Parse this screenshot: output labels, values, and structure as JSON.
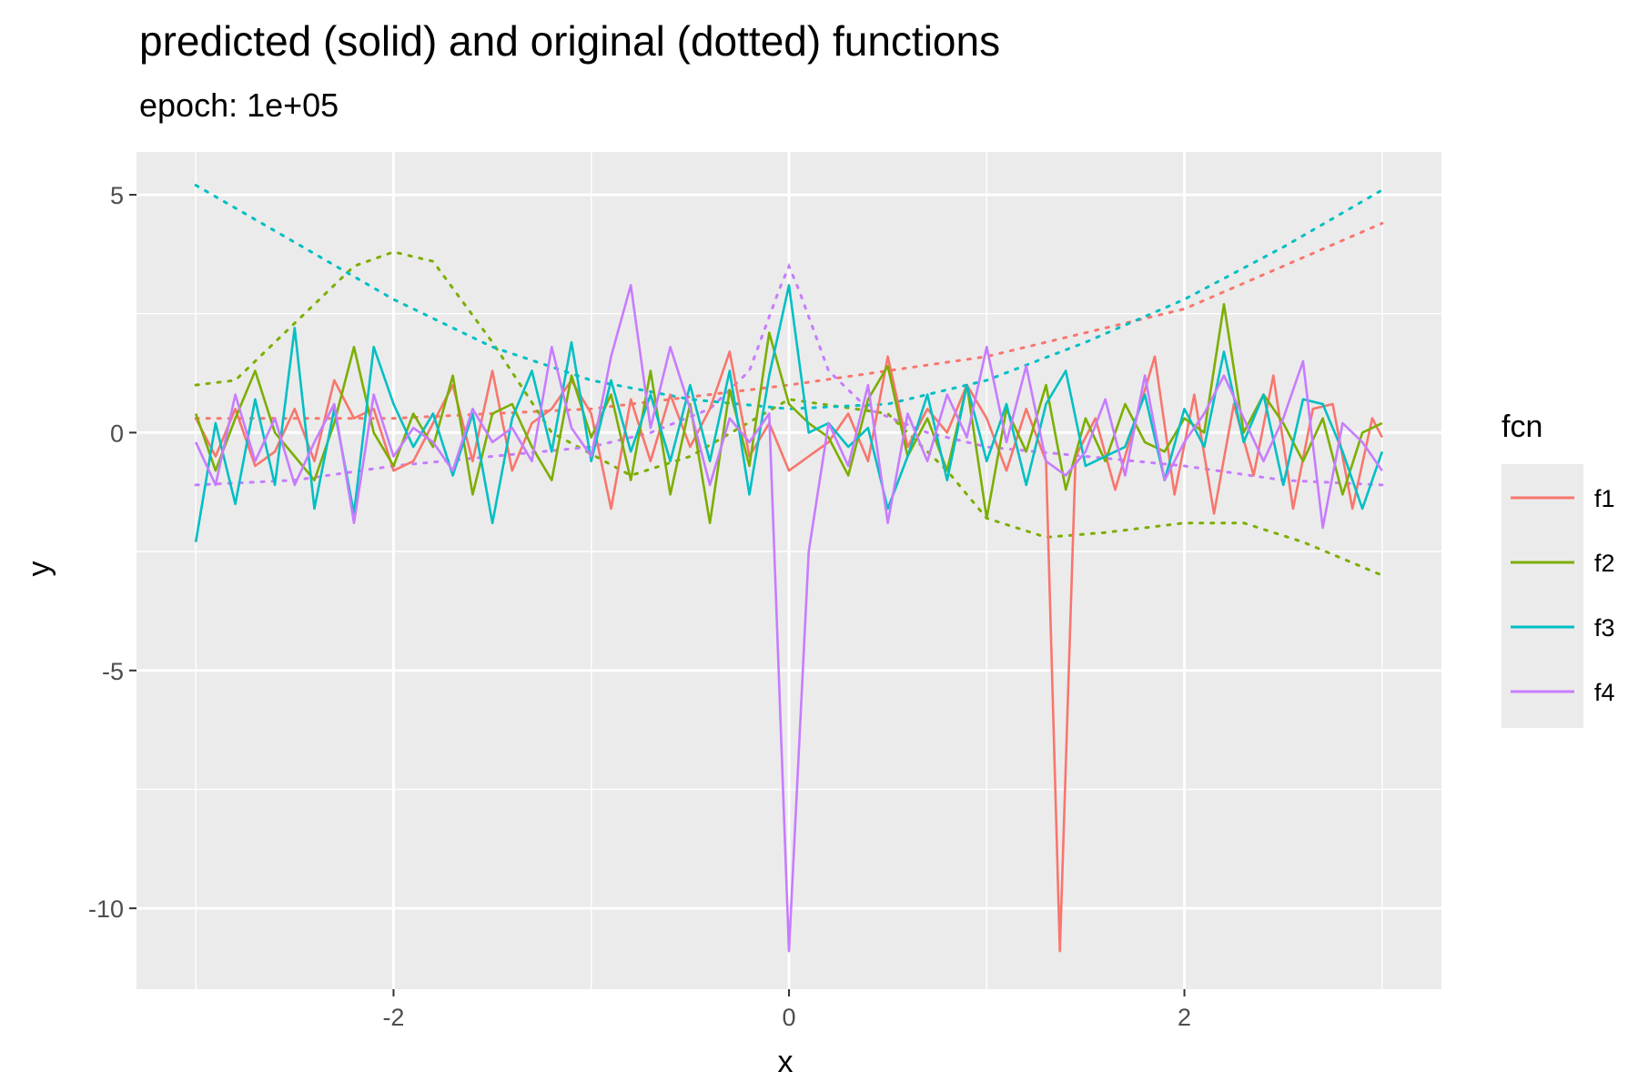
{
  "chart_data": {
    "type": "line",
    "title": "predicted (solid) and original (dotted) functions",
    "subtitle": "epoch: 1e+05",
    "xlabel": "x",
    "ylabel": "y",
    "xlim": [
      -3.3,
      3.3
    ],
    "ylim": [
      -11.7,
      5.9
    ],
    "x_ticks": [
      -2,
      0,
      2
    ],
    "x_tick_labels": [
      "-2",
      "0",
      "2"
    ],
    "y_ticks": [
      5,
      0,
      -5,
      -10
    ],
    "y_tick_labels": [
      "5",
      "0",
      "-5",
      "-10"
    ],
    "grid": true,
    "legend": {
      "title": "fcn",
      "position": "right"
    },
    "series": [
      {
        "name": "f1",
        "color": "#F8766D",
        "original_x": [
          -3,
          -2,
          -1,
          0,
          1,
          2,
          3
        ],
        "original_y": [
          0.3,
          0.3,
          0.5,
          1.0,
          1.6,
          2.6,
          4.4
        ],
        "predicted_x": [
          -3,
          -2.9,
          -2.8,
          -2.7,
          -2.6,
          -2.5,
          -2.4,
          -2.3,
          -2.2,
          -2.1,
          -2.0,
          -1.9,
          -1.8,
          -1.7,
          -1.6,
          -1.5,
          -1.4,
          -1.3,
          -1.2,
          -1.1,
          -1.0,
          -0.9,
          -0.8,
          -0.7,
          -0.6,
          -0.5,
          -0.4,
          -0.3,
          -0.2,
          -0.1,
          0,
          0.1,
          0.2,
          0.3,
          0.4,
          0.5,
          0.6,
          0.7,
          0.8,
          0.9,
          1.0,
          1.1,
          1.2,
          1.3,
          1.37,
          1.45,
          1.55,
          1.65,
          1.75,
          1.85,
          1.95,
          2.05,
          2.15,
          2.25,
          2.35,
          2.45,
          2.55,
          2.65,
          2.75,
          2.85,
          2.95,
          3.0
        ],
        "predicted_y": [
          0.3,
          -0.5,
          0.5,
          -0.7,
          -0.4,
          0.5,
          -0.6,
          1.1,
          0.3,
          0.5,
          -0.8,
          -0.6,
          0.2,
          1.0,
          -0.6,
          1.3,
          -0.8,
          0.2,
          0.5,
          1.1,
          0.4,
          -1.6,
          0.7,
          -0.6,
          0.8,
          -0.3,
          0.5,
          1.7,
          -0.5,
          0.2,
          -0.8,
          -0.5,
          -0.2,
          0.4,
          -0.6,
          1.6,
          -0.3,
          0.5,
          0.0,
          1.0,
          0.3,
          -0.8,
          0.5,
          -0.6,
          -10.9,
          -0.5,
          0.3,
          -1.2,
          0.2,
          1.6,
          -1.3,
          0.8,
          -1.7,
          0.6,
          -0.9,
          1.2,
          -1.6,
          0.5,
          0.6,
          -1.6,
          0.3,
          -0.1
        ]
      },
      {
        "name": "f2",
        "color": "#7CAE00",
        "original_x": [
          -3,
          -2.8,
          -2.5,
          -2.2,
          -2.0,
          -1.8,
          -1.5,
          -1.2,
          -0.8,
          -0.5,
          0,
          0.5,
          0.8,
          1.0,
          1.3,
          1.6,
          2.0,
          2.3,
          2.6,
          3.0
        ],
        "original_y": [
          1.0,
          1.1,
          2.3,
          3.5,
          3.8,
          3.6,
          1.9,
          0.0,
          -0.9,
          -0.5,
          0.7,
          0.4,
          -0.8,
          -1.8,
          -2.2,
          -2.1,
          -1.9,
          -1.9,
          -2.3,
          -3.0
        ],
        "predicted_x": [
          -3,
          -2.9,
          -2.8,
          -2.7,
          -2.6,
          -2.5,
          -2.4,
          -2.3,
          -2.2,
          -2.1,
          -2.0,
          -1.9,
          -1.8,
          -1.7,
          -1.6,
          -1.5,
          -1.4,
          -1.3,
          -1.2,
          -1.1,
          -1.0,
          -0.9,
          -0.8,
          -0.7,
          -0.6,
          -0.5,
          -0.4,
          -0.3,
          -0.2,
          -0.1,
          0,
          0.1,
          0.2,
          0.3,
          0.4,
          0.5,
          0.6,
          0.7,
          0.8,
          0.9,
          1.0,
          1.1,
          1.2,
          1.3,
          1.4,
          1.5,
          1.6,
          1.7,
          1.8,
          1.9,
          2.0,
          2.1,
          2.2,
          2.3,
          2.4,
          2.5,
          2.6,
          2.7,
          2.8,
          2.9,
          3.0
        ],
        "predicted_y": [
          0.4,
          -0.8,
          0.3,
          1.3,
          0.0,
          -0.5,
          -1.0,
          0.2,
          1.8,
          0.0,
          -0.7,
          0.4,
          -0.3,
          1.2,
          -1.3,
          0.4,
          0.6,
          -0.3,
          -1.0,
          1.2,
          -0.1,
          0.8,
          -1.0,
          1.3,
          -1.3,
          0.6,
          -1.9,
          0.9,
          -0.7,
          2.1,
          0.6,
          0.2,
          -0.1,
          -0.9,
          0.7,
          1.4,
          -0.5,
          0.3,
          -0.8,
          1.0,
          -1.8,
          0.5,
          -0.4,
          1.0,
          -1.2,
          0.3,
          -0.6,
          0.6,
          -0.2,
          -0.4,
          0.3,
          0.0,
          2.7,
          0.0,
          0.8,
          0.2,
          -0.6,
          0.3,
          -1.3,
          0.0,
          0.2
        ]
      },
      {
        "name": "f3",
        "color": "#00BFC4",
        "original_x": [
          -3,
          -2.5,
          -2.0,
          -1.5,
          -1.0,
          -0.5,
          0,
          0.5,
          1.0,
          1.5,
          2.0,
          2.5,
          3.0
        ],
        "original_y": [
          5.2,
          4.0,
          2.8,
          1.8,
          1.1,
          0.7,
          0.5,
          0.6,
          1.1,
          1.9,
          2.8,
          3.9,
          5.1
        ],
        "predicted_x": [
          -3,
          -2.9,
          -2.8,
          -2.7,
          -2.6,
          -2.5,
          -2.4,
          -2.3,
          -2.2,
          -2.1,
          -2.0,
          -1.9,
          -1.8,
          -1.7,
          -1.6,
          -1.5,
          -1.4,
          -1.3,
          -1.2,
          -1.1,
          -1.0,
          -0.9,
          -0.8,
          -0.7,
          -0.6,
          -0.5,
          -0.4,
          -0.3,
          -0.2,
          -0.1,
          0,
          0.1,
          0.2,
          0.3,
          0.4,
          0.5,
          0.6,
          0.7,
          0.8,
          0.9,
          1.0,
          1.1,
          1.2,
          1.3,
          1.4,
          1.5,
          1.6,
          1.7,
          1.8,
          1.9,
          2.0,
          2.1,
          2.2,
          2.3,
          2.4,
          2.5,
          2.6,
          2.7,
          2.8,
          2.9,
          3.0
        ],
        "predicted_y": [
          -2.3,
          0.2,
          -1.5,
          0.7,
          -1.1,
          2.2,
          -1.6,
          0.5,
          -1.7,
          1.8,
          0.6,
          -0.3,
          0.4,
          -0.9,
          0.4,
          -1.9,
          0.3,
          1.3,
          -0.4,
          1.9,
          -0.6,
          1.1,
          -0.4,
          0.8,
          -0.6,
          1.0,
          -0.6,
          1.3,
          -1.3,
          1.2,
          3.1,
          0.0,
          0.2,
          -0.3,
          0.1,
          -1.6,
          -0.5,
          0.8,
          -1.0,
          1.0,
          -0.6,
          0.6,
          -1.1,
          0.6,
          1.3,
          -0.7,
          -0.5,
          -0.3,
          0.8,
          -1.0,
          0.5,
          -0.3,
          1.7,
          -0.2,
          0.8,
          -1.1,
          0.7,
          0.6,
          -0.4,
          -1.6,
          -0.4
        ]
      },
      {
        "name": "f4",
        "color": "#C77CFF",
        "original_x": [
          -3,
          -2.5,
          -2.0,
          -1.5,
          -1.0,
          -0.7,
          -0.4,
          -0.2,
          -0.05,
          0,
          0.05,
          0.2,
          0.4,
          0.7,
          1.0,
          1.5,
          2.0,
          2.5,
          3.0
        ],
        "original_y": [
          -1.1,
          -1.0,
          -0.7,
          -0.5,
          -0.3,
          0.0,
          0.5,
          1.3,
          3.0,
          3.5,
          3.0,
          1.3,
          0.5,
          0.0,
          -0.3,
          -0.5,
          -0.7,
          -1.0,
          -1.1
        ],
        "predicted_x": [
          -3,
          -2.9,
          -2.8,
          -2.7,
          -2.6,
          -2.5,
          -2.4,
          -2.3,
          -2.2,
          -2.1,
          -2.0,
          -1.9,
          -1.8,
          -1.7,
          -1.6,
          -1.5,
          -1.4,
          -1.3,
          -1.2,
          -1.1,
          -1.0,
          -0.9,
          -0.8,
          -0.7,
          -0.6,
          -0.5,
          -0.4,
          -0.3,
          -0.2,
          -0.1,
          0,
          0.1,
          0.2,
          0.3,
          0.4,
          0.5,
          0.6,
          0.7,
          0.8,
          0.9,
          1.0,
          1.1,
          1.2,
          1.3,
          1.4,
          1.5,
          1.6,
          1.7,
          1.8,
          1.9,
          2.0,
          2.1,
          2.2,
          2.3,
          2.4,
          2.5,
          2.6,
          2.7,
          2.8,
          2.9,
          3.0
        ],
        "predicted_y": [
          -0.2,
          -1.1,
          0.8,
          -0.6,
          0.3,
          -1.1,
          -0.2,
          0.6,
          -1.9,
          0.8,
          -0.5,
          0.1,
          -0.2,
          -0.8,
          0.5,
          -0.2,
          0.1,
          -0.6,
          1.8,
          0.1,
          -0.5,
          1.6,
          3.1,
          0.1,
          1.8,
          0.5,
          -1.1,
          0.3,
          -0.2,
          0.4,
          -10.9,
          -2.5,
          0.2,
          -0.7,
          1.0,
          -1.9,
          0.4,
          -0.6,
          0.8,
          -0.1,
          1.8,
          -0.2,
          1.4,
          -0.6,
          -0.9,
          -0.4,
          0.7,
          -0.9,
          1.2,
          -1.0,
          -0.2,
          0.4,
          1.2,
          0.3,
          -0.6,
          0.3,
          1.5,
          -2.0,
          0.2,
          -0.2,
          -0.8
        ]
      }
    ]
  }
}
